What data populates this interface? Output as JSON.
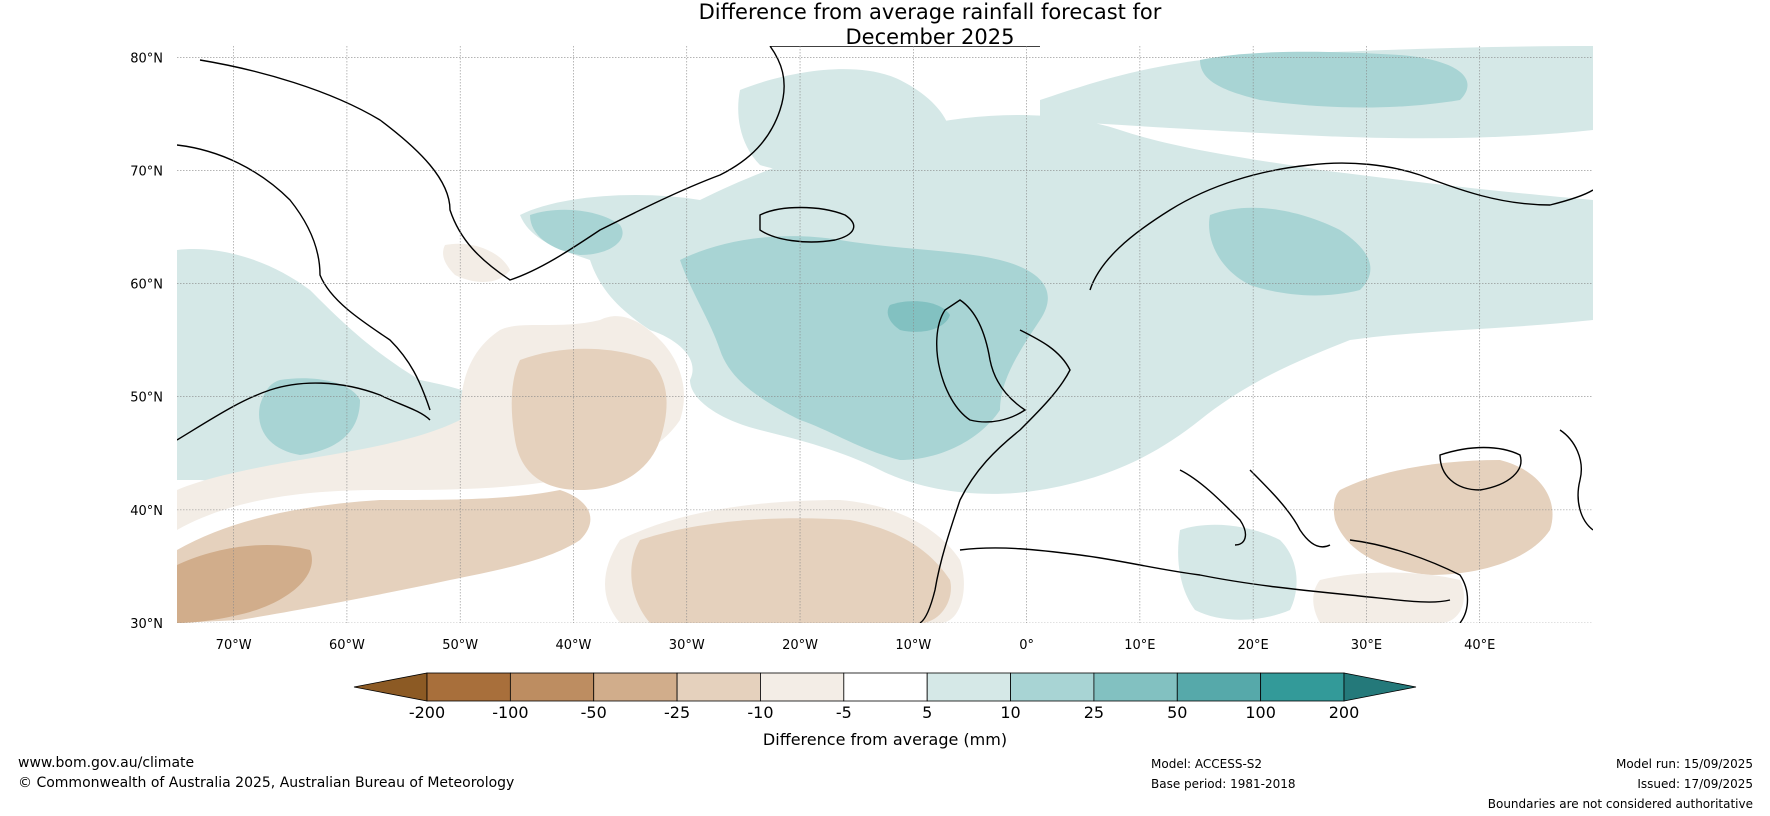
{
  "title": {
    "line1": "Difference from average rainfall forecast for",
    "line2": "December 2025"
  },
  "map": {
    "lon_range": [
      -75,
      50
    ],
    "lat_range": [
      30,
      81
    ],
    "lat_ticks": [
      {
        "value": 80,
        "label": "80°N"
      },
      {
        "value": 70,
        "label": "70°N"
      },
      {
        "value": 60,
        "label": "60°N"
      },
      {
        "value": 50,
        "label": "50°N"
      },
      {
        "value": 40,
        "label": "40°N"
      },
      {
        "value": 30,
        "label": "30°N"
      }
    ],
    "lon_ticks": [
      {
        "value": -70,
        "label": "70°W"
      },
      {
        "value": -60,
        "label": "60°W"
      },
      {
        "value": -50,
        "label": "50°W"
      },
      {
        "value": -40,
        "label": "40°W"
      },
      {
        "value": -30,
        "label": "30°W"
      },
      {
        "value": -20,
        "label": "20°W"
      },
      {
        "value": -10,
        "label": "10°W"
      },
      {
        "value": 0,
        "label": "0°"
      },
      {
        "value": 10,
        "label": "10°E"
      },
      {
        "value": 20,
        "label": "20°E"
      },
      {
        "value": 30,
        "label": "30°E"
      },
      {
        "value": 40,
        "label": "40°E"
      }
    ],
    "gridlines": true
  },
  "colorbar": {
    "label": "Difference from average (mm)",
    "boundaries": [
      "-200",
      "-100",
      "-50",
      "-25",
      "-10",
      "-5",
      "5",
      "10",
      "25",
      "50",
      "100",
      "200"
    ],
    "colors": [
      "#8c5a24",
      "#a86f3b",
      "#bd8d61",
      "#d1ad8b",
      "#e5d1bd",
      "#f3ede6",
      "#ffffff",
      "#d5e8e7",
      "#a8d4d4",
      "#82c1c1",
      "#56a9aa",
      "#339a99",
      "#24797a"
    ],
    "extend": "both"
  },
  "footer": {
    "website": "www.bom.gov.au/climate",
    "copyright": "© Commonwealth of Australia 2025, Australian Bureau of Meteorology",
    "model": "Model: ACCESS-S2",
    "base_period": "Base period: 1981-2018",
    "model_run": "Model run: 15/09/2025",
    "issued": "Issued: 17/09/2025",
    "disclaimer": "Boundaries are not considered authoritative"
  }
}
